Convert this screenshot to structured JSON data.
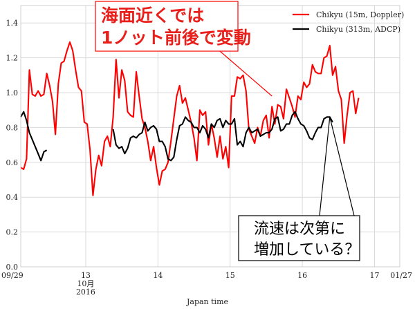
{
  "chart_data": {
    "type": "line",
    "title": "",
    "xlabel": "Japan time",
    "ylabel": "",
    "ylim": [
      0.0,
      1.5
    ],
    "yticks": [
      "0.0",
      "0.2",
      "0.4",
      "0.6",
      "0.8",
      "1.0",
      "1.2",
      "1.4"
    ],
    "xlim": [
      12.1,
      17.35
    ],
    "xticks": [
      {
        "x": 12.1,
        "label": "09/29"
      },
      {
        "x": 13.0,
        "label": "13"
      },
      {
        "x": 14.0,
        "label": "14"
      },
      {
        "x": 15.0,
        "label": "15"
      },
      {
        "x": 16.0,
        "label": "16"
      },
      {
        "x": 17.0,
        "label": "17"
      },
      {
        "x": 17.35,
        "label": "01/27"
      }
    ],
    "xsublabels": [
      {
        "x": 13.0,
        "line1": "10月",
        "line2": "2016"
      }
    ],
    "grid": true,
    "legend": "top-right",
    "series": [
      {
        "name": "Chikyu (15m, Doppler)",
        "color": "#ff0000",
        "points": [
          [
            12.1,
            0.57
          ],
          [
            12.14,
            0.56
          ],
          [
            12.18,
            0.62
          ],
          [
            12.22,
            1.13
          ],
          [
            12.26,
            0.99
          ],
          [
            12.3,
            0.98
          ],
          [
            12.34,
            1.01
          ],
          [
            12.38,
            0.98
          ],
          [
            12.42,
            0.99
          ],
          [
            12.46,
            1.11
          ],
          [
            12.5,
            1.04
          ],
          [
            12.54,
            0.95
          ],
          [
            12.58,
            0.76
          ],
          [
            12.62,
            1.05
          ],
          [
            12.66,
            1.17
          ],
          [
            12.7,
            1.18
          ],
          [
            12.74,
            1.24
          ],
          [
            12.78,
            1.29
          ],
          [
            12.82,
            1.24
          ],
          [
            12.86,
            1.13
          ],
          [
            12.9,
            1.03
          ],
          [
            12.94,
            1.01
          ],
          [
            12.98,
            0.83
          ],
          [
            13.02,
            0.82
          ],
          [
            13.06,
            0.67
          ],
          [
            13.1,
            0.41
          ],
          [
            13.14,
            0.56
          ],
          [
            13.18,
            0.64
          ],
          [
            13.22,
            0.58
          ],
          [
            13.26,
            0.72
          ],
          [
            13.3,
            0.75
          ],
          [
            13.34,
            0.69
          ],
          [
            13.38,
            0.86
          ],
          [
            13.42,
            1.19
          ],
          [
            13.46,
            0.97
          ],
          [
            13.5,
            1.13
          ],
          [
            13.54,
            1.07
          ],
          [
            13.58,
            0.89
          ],
          [
            13.62,
            0.87
          ],
          [
            13.66,
            0.86
          ],
          [
            13.7,
            1.12
          ],
          [
            13.74,
            0.98
          ],
          [
            13.78,
            0.85
          ],
          [
            13.82,
            0.8
          ],
          [
            13.86,
            0.72
          ],
          [
            13.9,
            0.61
          ],
          [
            13.94,
            0.69
          ],
          [
            13.98,
            0.57
          ],
          [
            14.02,
            0.47
          ],
          [
            14.06,
            0.55
          ],
          [
            14.1,
            0.56
          ],
          [
            14.14,
            0.6
          ],
          [
            14.18,
            0.72
          ],
          [
            14.22,
            0.85
          ],
          [
            14.26,
            0.98
          ],
          [
            14.3,
            1.04
          ],
          [
            14.34,
            0.94
          ],
          [
            14.38,
            0.97
          ],
          [
            14.42,
            0.9
          ],
          [
            14.46,
            0.83
          ],
          [
            14.5,
            0.74
          ],
          [
            14.54,
            0.61
          ],
          [
            14.58,
            0.9
          ],
          [
            14.62,
            0.87
          ],
          [
            14.66,
            0.89
          ],
          [
            14.7,
            0.7
          ],
          [
            14.74,
            0.82
          ],
          [
            14.78,
            0.74
          ],
          [
            14.82,
            0.63
          ],
          [
            14.86,
            0.75
          ],
          [
            14.9,
            0.62
          ],
          [
            14.94,
            0.69
          ],
          [
            14.98,
            0.57
          ],
          [
            15.02,
            0.98
          ],
          [
            15.06,
            0.98
          ],
          [
            15.1,
            1.09
          ],
          [
            15.14,
            1.08
          ],
          [
            15.18,
            1.1
          ],
          [
            15.22,
            1.01
          ],
          [
            15.26,
            0.79
          ],
          [
            15.3,
            0.75
          ],
          [
            15.34,
            0.71
          ],
          [
            15.38,
            0.8
          ],
          [
            15.42,
            0.75
          ],
          [
            15.46,
            0.84
          ],
          [
            15.5,
            0.87
          ],
          [
            15.54,
            0.74
          ],
          [
            15.58,
            0.92
          ],
          [
            15.62,
            0.82
          ],
          [
            15.66,
            0.93
          ],
          [
            15.7,
            0.92
          ],
          [
            15.74,
            0.85
          ],
          [
            15.78,
            1.02
          ],
          [
            15.82,
            0.97
          ],
          [
            15.86,
            0.92
          ],
          [
            15.9,
            0.86
          ],
          [
            15.94,
            0.98
          ],
          [
            15.98,
            0.96
          ],
          [
            16.02,
            1.06
          ],
          [
            16.06,
            1.03
          ],
          [
            16.1,
            1.05
          ],
          [
            16.14,
            1.16
          ],
          [
            16.18,
            1.12
          ],
          [
            16.22,
            1.11
          ],
          [
            16.26,
            1.11
          ],
          [
            16.3,
            1.2
          ],
          [
            16.34,
            1.21
          ],
          [
            16.38,
            1.27
          ],
          [
            16.42,
            1.1
          ],
          [
            16.46,
            1.15
          ],
          [
            16.5,
            1.01
          ],
          [
            16.54,
            0.96
          ],
          [
            16.58,
            0.71
          ],
          [
            16.62,
            0.87
          ],
          [
            16.66,
            1.0
          ],
          [
            16.7,
            1.01
          ],
          [
            16.74,
            0.88
          ],
          [
            16.78,
            0.97
          ]
        ]
      },
      {
        "name": "Chikyu (313m, ADCP)",
        "color": "#000000",
        "segments": [
          [
            [
              12.1,
              0.86
            ],
            [
              12.14,
              0.89
            ],
            [
              12.18,
              0.84
            ],
            [
              12.22,
              0.77
            ],
            [
              12.26,
              0.73
            ],
            [
              12.3,
              0.69
            ],
            [
              12.34,
              0.65
            ],
            [
              12.38,
              0.61
            ],
            [
              12.42,
              0.66
            ],
            [
              12.46,
              0.67
            ]
          ],
          [
            [
              13.38,
              0.79
            ],
            [
              13.42,
              0.7
            ],
            [
              13.46,
              0.68
            ],
            [
              13.5,
              0.69
            ],
            [
              13.54,
              0.65
            ],
            [
              13.58,
              0.68
            ],
            [
              13.62,
              0.74
            ],
            [
              13.66,
              0.75
            ],
            [
              13.7,
              0.74
            ],
            [
              13.74,
              0.76
            ],
            [
              13.78,
              0.77
            ],
            [
              13.82,
              0.83
            ],
            [
              13.86,
              0.78
            ],
            [
              13.9,
              0.8
            ],
            [
              13.94,
              0.81
            ],
            [
              13.98,
              0.79
            ],
            [
              14.02,
              0.72
            ],
            [
              14.06,
              0.72
            ],
            [
              14.1,
              0.69
            ],
            [
              14.14,
              0.62
            ],
            [
              14.18,
              0.61
            ],
            [
              14.22,
              0.63
            ],
            [
              14.26,
              0.73
            ],
            [
              14.3,
              0.81
            ],
            [
              14.34,
              0.82
            ],
            [
              14.38,
              0.86
            ],
            [
              14.42,
              0.84
            ],
            [
              14.46,
              0.83
            ],
            [
              14.5,
              0.8
            ],
            [
              14.54,
              0.8
            ],
            [
              14.58,
              0.77
            ],
            [
              14.62,
              0.81
            ],
            [
              14.66,
              0.79
            ],
            [
              14.7,
              0.74
            ],
            [
              14.74,
              0.82
            ],
            [
              14.78,
              0.8
            ],
            [
              14.82,
              0.84
            ],
            [
              14.86,
              0.85
            ],
            [
              14.9,
              0.8
            ],
            [
              14.94,
              0.84
            ],
            [
              14.98,
              0.82
            ],
            [
              15.02,
              0.82
            ],
            [
              15.06,
              0.85
            ],
            [
              15.1,
              0.7
            ],
            [
              15.14,
              0.72
            ],
            [
              15.18,
              0.69
            ],
            [
              15.22,
              0.77
            ],
            [
              15.26,
              0.8
            ],
            [
              15.3,
              0.77
            ],
            [
              15.34,
              0.78
            ],
            [
              15.38,
              0.79
            ],
            [
              15.42,
              0.75
            ],
            [
              15.46,
              0.76
            ],
            [
              15.5,
              0.77
            ],
            [
              15.54,
              0.77
            ],
            [
              15.58,
              0.79
            ],
            [
              15.62,
              0.85
            ],
            [
              15.66,
              0.86
            ],
            [
              15.7,
              0.78
            ],
            [
              15.74,
              0.79
            ],
            [
              15.78,
              0.82
            ],
            [
              15.82,
              0.82
            ],
            [
              15.86,
              0.87
            ],
            [
              15.9,
              0.89
            ],
            [
              15.94,
              0.85
            ],
            [
              15.98,
              0.82
            ],
            [
              16.02,
              0.81
            ],
            [
              16.06,
              0.78
            ],
            [
              16.1,
              0.74
            ],
            [
              16.14,
              0.73
            ],
            [
              16.18,
              0.77
            ],
            [
              16.22,
              0.8
            ],
            [
              16.26,
              0.8
            ],
            [
              16.3,
              0.85
            ],
            [
              16.34,
              0.86
            ],
            [
              16.38,
              0.86
            ],
            [
              16.42,
              0.83
            ]
          ]
        ]
      }
    ],
    "annotations": [
      {
        "text_lines": [
          "海面近くでは",
          "1ノット前後で変動"
        ],
        "box_color": "#ff0000",
        "text_color": "#e8201c",
        "points_to": [
          15.58,
          0.98
        ]
      },
      {
        "text_lines": [
          "流速は次第に",
          "増加している？"
        ],
        "box_color": "#000000",
        "text_color": "#000000",
        "points_to": [
          16.38,
          0.86
        ]
      }
    ]
  }
}
